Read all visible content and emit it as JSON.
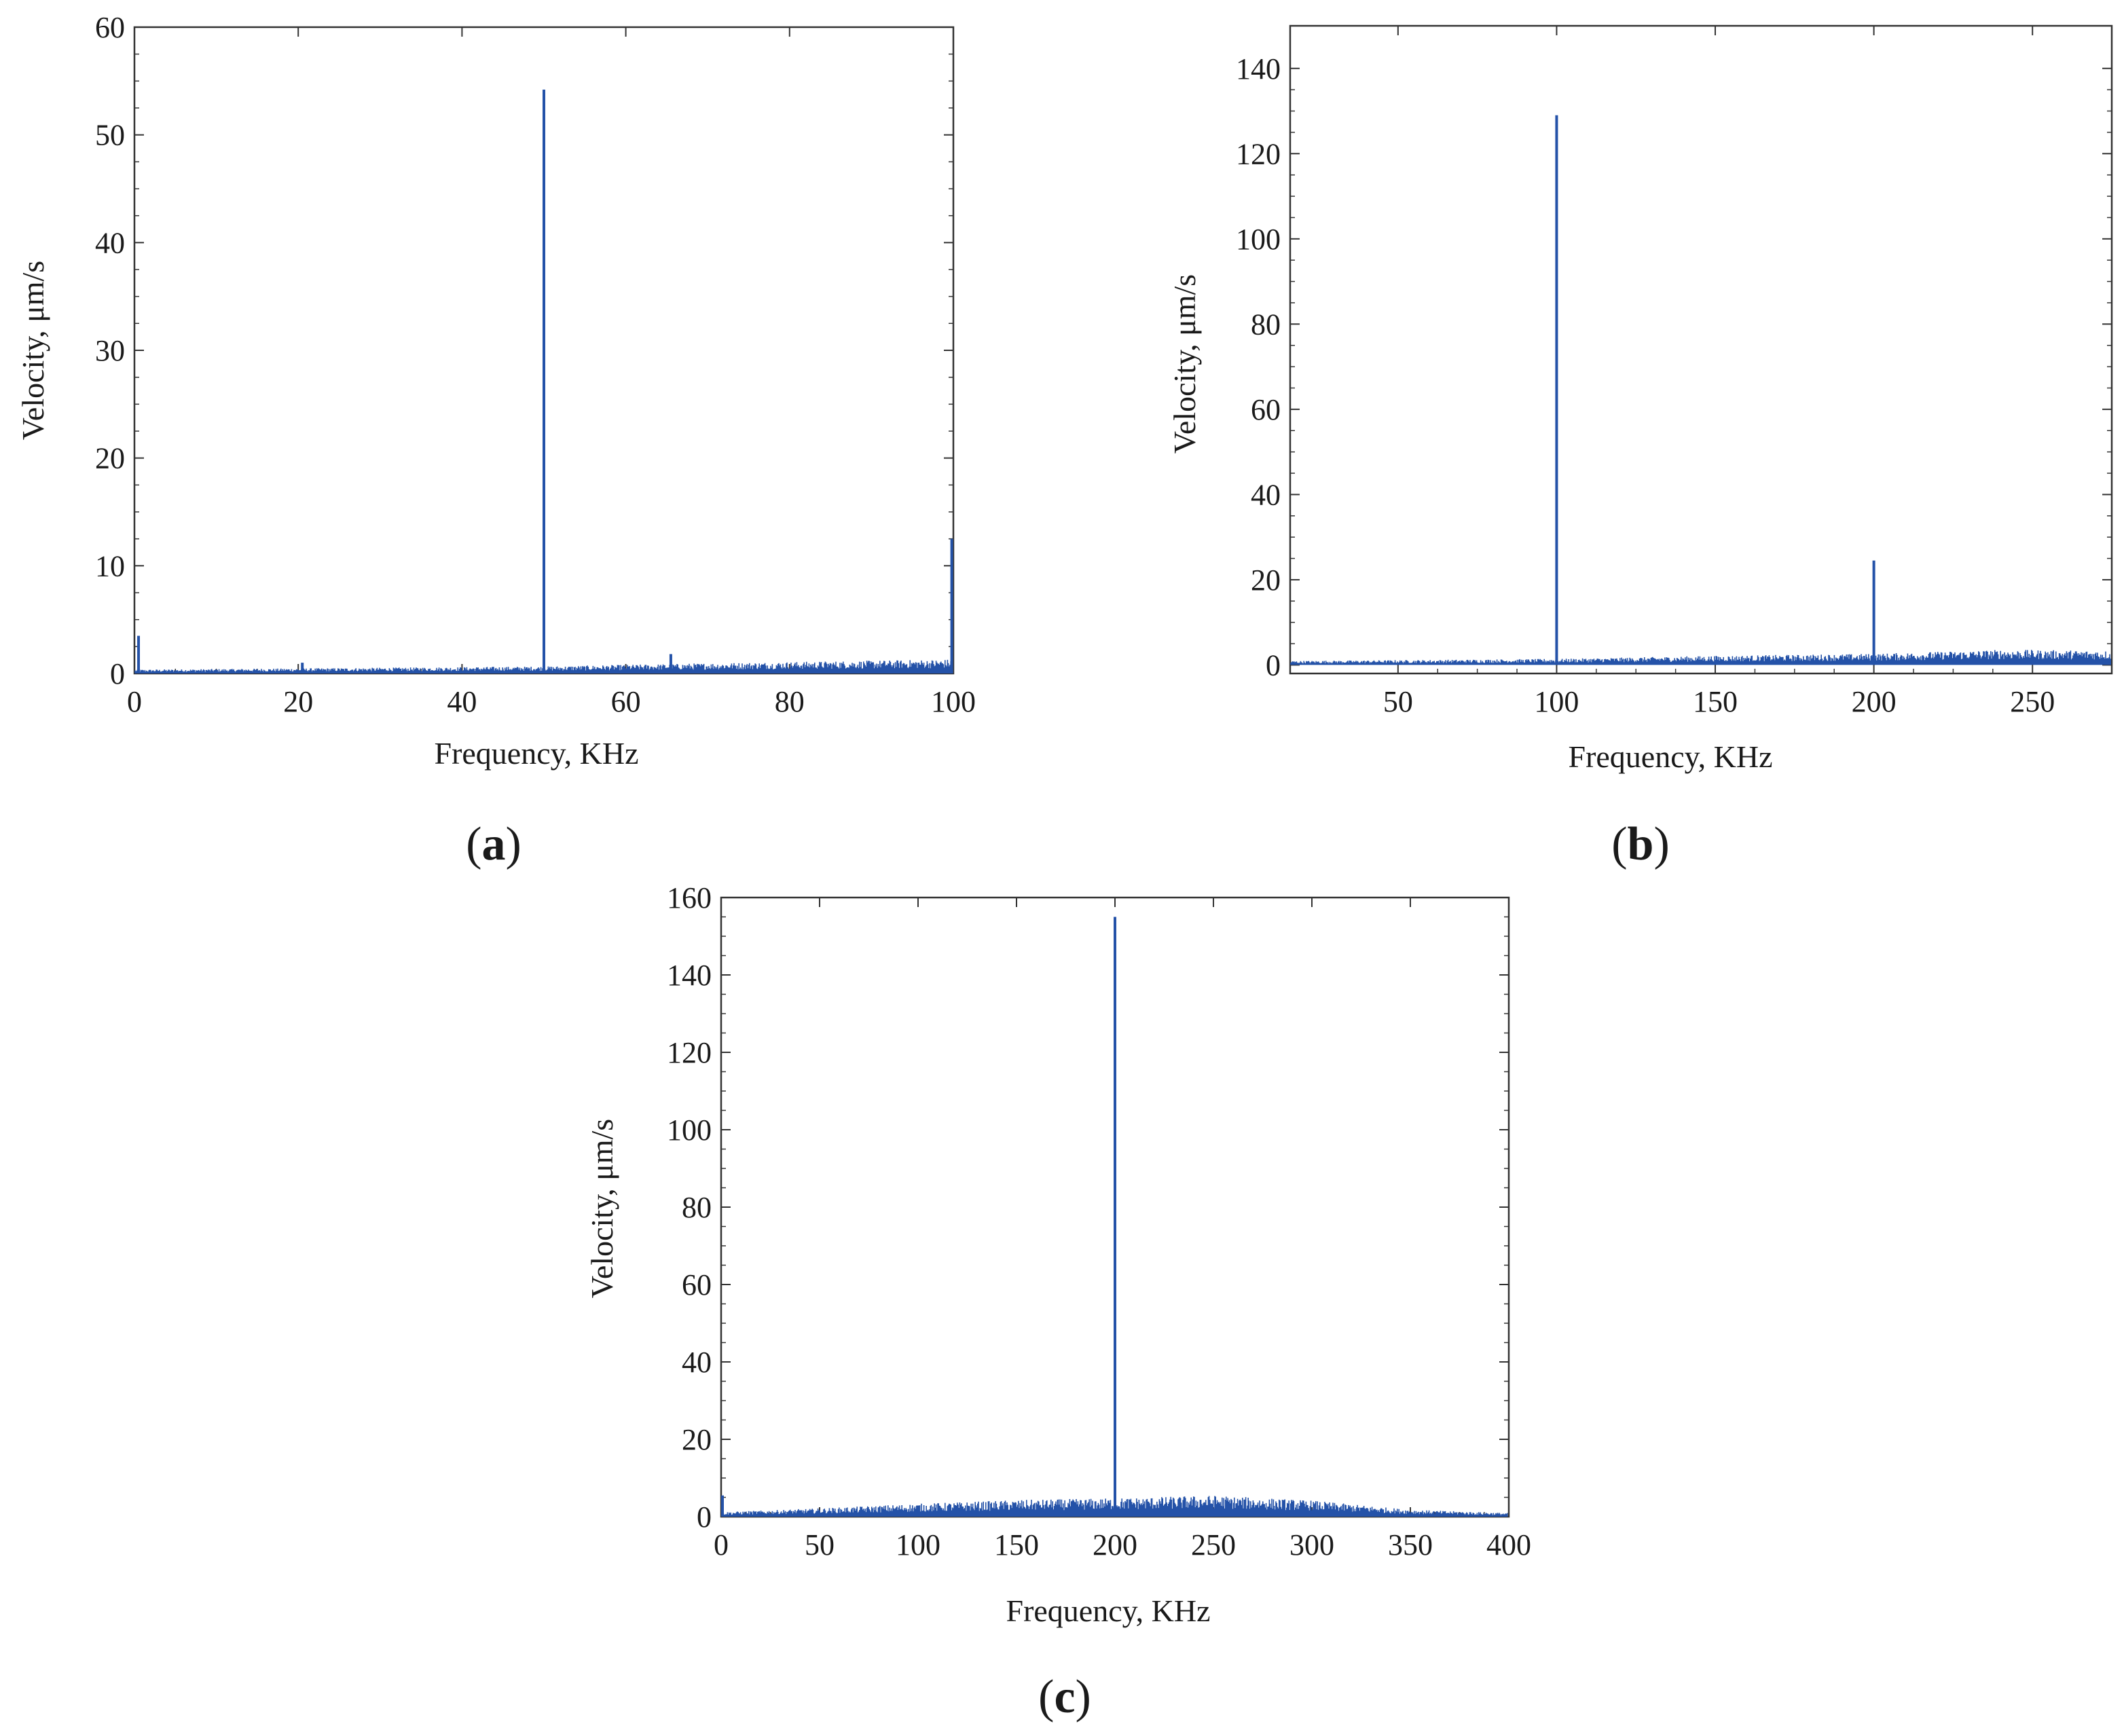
{
  "figure": {
    "line_color": "#2452a8",
    "axis_color": "#333333"
  },
  "chart_data": [
    {
      "id": "a",
      "type": "line",
      "panel_label": "a",
      "xlabel": "Frequency, KHz",
      "ylabel": "Velocity, μm/s",
      "xlim": [
        0,
        100
      ],
      "ylim": [
        0,
        60
      ],
      "xticks": [
        "0",
        "20",
        "40",
        "60",
        "80",
        "100"
      ],
      "yticks": [
        "0",
        "10",
        "20",
        "30",
        "40",
        "50",
        "60"
      ],
      "grid": false,
      "noise": [
        [
          0,
          0.3
        ],
        [
          10,
          0.35
        ],
        [
          30,
          0.45
        ],
        [
          50,
          0.55
        ],
        [
          70,
          0.8
        ],
        [
          90,
          1.0
        ],
        [
          100,
          1.1
        ]
      ],
      "peaks": [
        {
          "x": 0.5,
          "y": 3.5
        },
        {
          "x": 20.5,
          "y": 1.0
        },
        {
          "x": 50,
          "y": 54.2
        },
        {
          "x": 65.5,
          "y": 1.8
        },
        {
          "x": 99.8,
          "y": 12.5
        }
      ]
    },
    {
      "id": "b",
      "type": "line",
      "panel_label": "b",
      "xlabel": "Frequency, KHz",
      "ylabel": "Velocity, μm/s",
      "xlim": [
        16,
        275
      ],
      "ylim": [
        -2,
        150
      ],
      "xticks": [
        "50",
        "100",
        "150",
        "200",
        "250"
      ],
      "yticks": [
        "0",
        "20",
        "40",
        "60",
        "80",
        "100",
        "120",
        "140"
      ],
      "grid": false,
      "noise": [
        [
          16,
          0.8
        ],
        [
          60,
          1.0
        ],
        [
          100,
          1.2
        ],
        [
          150,
          1.8
        ],
        [
          200,
          2.2
        ],
        [
          240,
          3.0
        ],
        [
          275,
          2.8
        ]
      ],
      "peaks": [
        {
          "x": 100,
          "y": 129
        },
        {
          "x": 200,
          "y": 24.5
        }
      ]
    },
    {
      "id": "c",
      "type": "line",
      "panel_label": "c",
      "xlabel": "Frequency, KHz",
      "ylabel": "Velocity, μm/s",
      "xlim": [
        0,
        400
      ],
      "ylim": [
        0,
        160
      ],
      "xticks": [
        "0",
        "50",
        "100",
        "150",
        "200",
        "250",
        "300",
        "350",
        "400"
      ],
      "yticks": [
        "0",
        "20",
        "40",
        "60",
        "80",
        "100",
        "120",
        "140",
        "160"
      ],
      "grid": false,
      "noise": [
        [
          0,
          1.0
        ],
        [
          50,
          1.8
        ],
        [
          100,
          2.8
        ],
        [
          150,
          3.6
        ],
        [
          200,
          4.0
        ],
        [
          250,
          4.6
        ],
        [
          300,
          3.5
        ],
        [
          350,
          1.5
        ],
        [
          400,
          0.8
        ]
      ],
      "peaks": [
        {
          "x": 0.5,
          "y": 5.5
        },
        {
          "x": 200,
          "y": 155
        }
      ]
    }
  ]
}
